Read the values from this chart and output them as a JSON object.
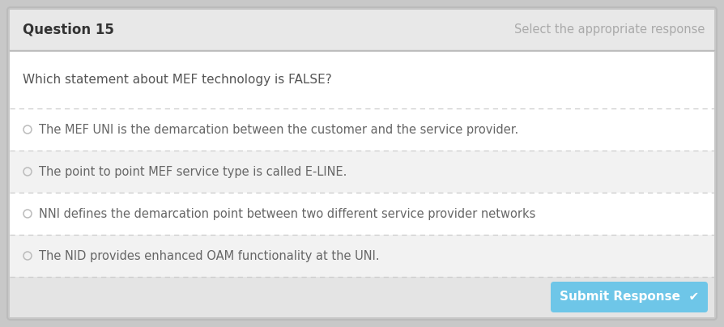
{
  "title": "Question 15",
  "subtitle": "Select the appropriate response",
  "question": "Which statement about MEF technology is FALSE?",
  "options": [
    "The MEF UNI is the demarcation between the customer and the service provider.",
    "The point to point MEF service type is called E-LINE.",
    "NNI defines the demarcation point between two different service provider networks",
    "The NID provides enhanced OAM functionality at the UNI."
  ],
  "submit_text": "Submit Response  ✔",
  "bg_outer": "#c8c8c8",
  "bg_header": "#e8e8e8",
  "bg_white": "#ffffff",
  "bg_option_even": "#f2f2f2",
  "bg_option_odd": "#f2f2f2",
  "bg_bottom": "#e4e4e4",
  "bg_submit": "#6ec6e8",
  "border_color": "#bbbbbb",
  "text_title": "#333333",
  "text_subtitle": "#aaaaaa",
  "text_question": "#555555",
  "text_option": "#666666",
  "text_submit": "#ffffff",
  "separator_color": "#cccccc",
  "radio_color": "#bbbbbb",
  "title_fontsize": 12,
  "subtitle_fontsize": 10.5,
  "question_fontsize": 11,
  "option_fontsize": 10.5,
  "submit_fontsize": 11
}
